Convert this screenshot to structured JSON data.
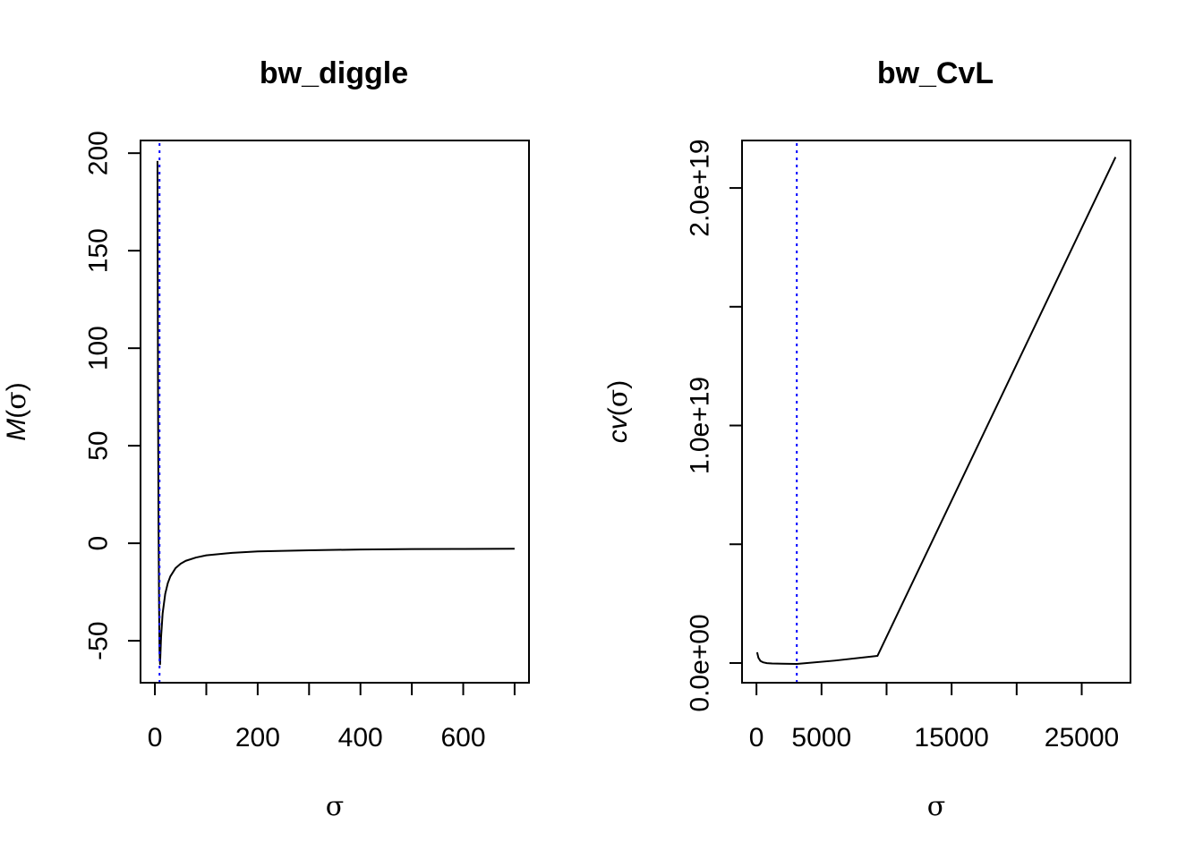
{
  "chart_data": [
    {
      "type": "line",
      "title": "bw_diggle",
      "xlabel": "σ",
      "ylabel": {
        "fn": "M",
        "open": "(",
        "arg": "σ",
        "close": ")"
      },
      "xlim": [
        -28,
        728
      ],
      "ylim": [
        -71.5,
        206.5
      ],
      "x_ticks": [
        0,
        100,
        200,
        300,
        400,
        500,
        600,
        700
      ],
      "x_tick_labels": [
        "0",
        "",
        "200",
        "",
        "400",
        "",
        "600",
        ""
      ],
      "y_ticks": [
        -50,
        0,
        50,
        100,
        150,
        200
      ],
      "y_tick_labels": [
        "-50",
        "0",
        "50",
        "100",
        "150",
        "200"
      ],
      "grid": false,
      "series": [
        {
          "color": "#000000",
          "x": [
            5,
            6,
            7,
            8,
            9,
            10,
            12,
            15,
            20,
            25,
            30,
            40,
            50,
            60,
            80,
            100,
            150,
            200,
            300,
            400,
            500,
            600,
            700
          ],
          "y": [
            196,
            80,
            10,
            -30,
            -55,
            -62,
            -48,
            -36,
            -26,
            -20.5,
            -17,
            -12.8,
            -10.5,
            -9,
            -7.3,
            -6.2,
            -4.9,
            -4.2,
            -3.6,
            -3.2,
            -3,
            -2.9,
            -2.8
          ]
        }
      ],
      "vline": {
        "x": 9,
        "color": "#0000ff",
        "style": "dotted"
      }
    },
    {
      "type": "line",
      "title": "bw_CvL",
      "xlabel": "σ",
      "ylabel": {
        "fn": "cv",
        "open": "(",
        "arg": "σ",
        "close": ")"
      },
      "xlim": [
        -1110,
        28750
      ],
      "ylim": [
        -8.3e+17,
        2.2e+19
      ],
      "x_ticks": [
        0,
        5000,
        10000,
        15000,
        20000,
        25000
      ],
      "x_tick_labels": [
        "0",
        "5000",
        "",
        "15000",
        "",
        "25000"
      ],
      "y_ticks": [
        0,
        5e+18,
        1e+19,
        1.5e+19,
        2e+19
      ],
      "y_tick_labels": [
        "0.0e+00",
        "",
        "1.0e+19",
        "",
        "2.0e+19"
      ],
      "grid": false,
      "series": [
        {
          "color": "#000000",
          "x": [
            50,
            150,
            300,
            500,
            800,
            1200,
            2000,
            3100,
            6000,
            9300,
            27600
          ],
          "y": [
            4.5e+17,
            2.2e+17,
            9e+16,
            3e+16,
            -5000000000000000.0,
            -2e+16,
            -3e+16,
            -4e+16,
            1e+17,
            3e+17,
            2.13e+19
          ]
        }
      ],
      "vline": {
        "x": 3100,
        "color": "#0000ff",
        "style": "dotted"
      }
    }
  ]
}
